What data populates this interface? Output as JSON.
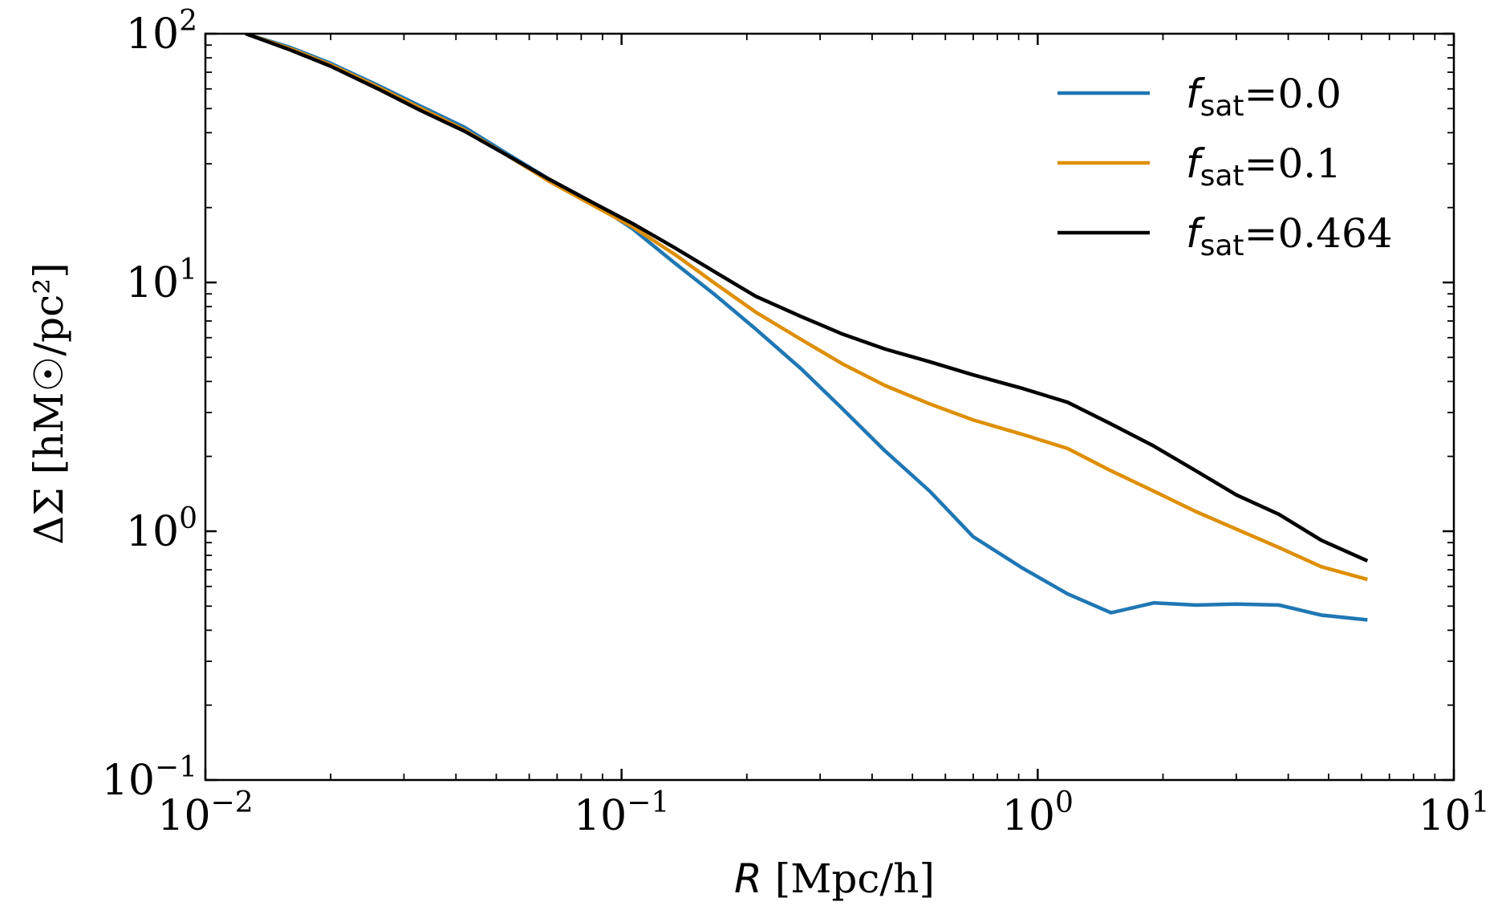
{
  "chart_data": {
    "type": "line",
    "x_scale": "log",
    "y_scale": "log",
    "xlim": [
      0.01,
      10
    ],
    "ylim": [
      0.1,
      100
    ],
    "grid": false,
    "legend_position": "top-right",
    "xlabel": {
      "symbol": "R",
      "unit": "[Mpc/h]"
    },
    "ylabel": "ΔΣ [hM☉/pc²]",
    "x_ticks": [
      {
        "value": 0.01,
        "base": "10",
        "exp": "−2"
      },
      {
        "value": 0.1,
        "base": "10",
        "exp": "−1"
      },
      {
        "value": 1,
        "base": "10",
        "exp": "0"
      },
      {
        "value": 10,
        "base": "10",
        "exp": "1"
      }
    ],
    "y_ticks": [
      {
        "value": 0.1,
        "base": "10",
        "exp": "−1"
      },
      {
        "value": 1,
        "base": "10",
        "exp": "0"
      },
      {
        "value": 10,
        "base": "10",
        "exp": "1"
      },
      {
        "value": 100,
        "base": "10",
        "exp": "2"
      }
    ],
    "series": [
      {
        "name": "f_sat=0.0",
        "label_var": "f",
        "label_sub": "sat",
        "label_value": "=0.0",
        "color": "#1f77b4",
        "x": [
          0.0125,
          0.016,
          0.02,
          0.026,
          0.033,
          0.042,
          0.053,
          0.067,
          0.085,
          0.106,
          0.134,
          0.168,
          0.21,
          0.27,
          0.34,
          0.43,
          0.55,
          0.7,
          0.92,
          1.18,
          1.5,
          1.9,
          2.4,
          3.0,
          3.8,
          4.8,
          6.2
        ],
        "y": [
          100,
          88,
          76,
          62,
          51,
          42,
          33,
          26,
          21,
          16.5,
          12.0,
          8.9,
          6.5,
          4.5,
          3.1,
          2.1,
          1.45,
          0.95,
          0.71,
          0.56,
          0.47,
          0.515,
          0.505,
          0.51,
          0.505,
          0.46,
          0.44
        ]
      },
      {
        "name": "f_sat=0.1",
        "label_var": "f",
        "label_sub": "sat",
        "label_value": "=0.1",
        "color": "#de8f05",
        "x": [
          0.0125,
          0.016,
          0.02,
          0.026,
          0.033,
          0.042,
          0.053,
          0.067,
          0.085,
          0.106,
          0.134,
          0.168,
          0.21,
          0.27,
          0.34,
          0.43,
          0.55,
          0.7,
          0.92,
          1.18,
          1.5,
          1.9,
          2.4,
          3.0,
          3.8,
          4.8,
          6.2
        ],
        "y": [
          100,
          87,
          75,
          61,
          50,
          41,
          32.5,
          25.5,
          20.5,
          16.8,
          13.0,
          9.9,
          7.6,
          5.9,
          4.7,
          3.85,
          3.25,
          2.8,
          2.45,
          2.15,
          1.75,
          1.45,
          1.2,
          1.02,
          0.86,
          0.72,
          0.64
        ]
      },
      {
        "name": "f_sat=0.464",
        "label_var": "f",
        "label_sub": "sat",
        "label_value": "=0.464",
        "color": "#000000",
        "x": [
          0.0125,
          0.016,
          0.02,
          0.026,
          0.033,
          0.042,
          0.053,
          0.067,
          0.085,
          0.106,
          0.134,
          0.168,
          0.21,
          0.27,
          0.34,
          0.43,
          0.55,
          0.7,
          0.92,
          1.18,
          1.5,
          1.9,
          2.4,
          3.0,
          3.8,
          4.8,
          6.2
        ],
        "y": [
          100,
          86,
          74,
          60,
          49,
          40.5,
          32.5,
          26,
          21,
          17.3,
          13.8,
          11.0,
          8.8,
          7.3,
          6.2,
          5.4,
          4.8,
          4.25,
          3.75,
          3.3,
          2.7,
          2.2,
          1.75,
          1.4,
          1.17,
          0.92,
          0.76
        ]
      }
    ]
  }
}
